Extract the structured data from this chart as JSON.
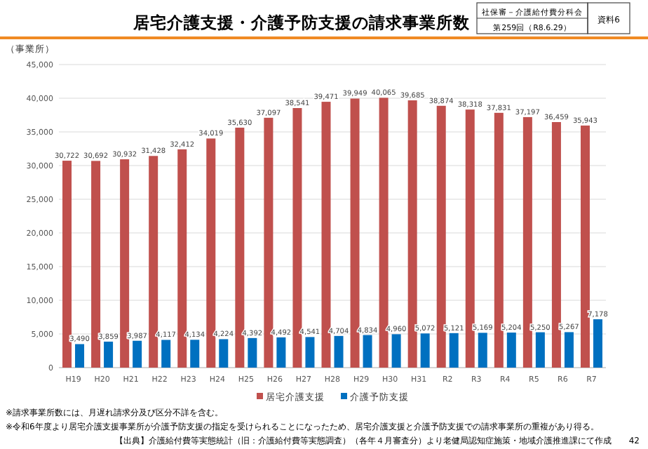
{
  "chart_data": {
    "type": "bar",
    "title": "居宅介護支援・介護予防支援の請求事業所数",
    "ylabel": "（事業所）",
    "categories": [
      "H19",
      "H20",
      "H21",
      "H22",
      "H23",
      "H24",
      "H25",
      "H26",
      "H27",
      "H28",
      "H29",
      "H30",
      "H31",
      "R2",
      "R3",
      "R4",
      "R5",
      "R6",
      "R7"
    ],
    "series": [
      {
        "name": "居宅介護支援",
        "color": "#c0504d",
        "values": [
          30722,
          30692,
          30932,
          31428,
          32412,
          34019,
          35630,
          37097,
          38541,
          39471,
          39949,
          40065,
          39685,
          38874,
          38318,
          37831,
          37197,
          36459,
          35943
        ],
        "value_labels": [
          "30,722",
          "30,692",
          "30,932",
          "31,428",
          "32,412",
          "34,019",
          "35,630",
          "37,097",
          "38,541",
          "39,471",
          "39,949",
          "40,065",
          "39,685",
          "38,874",
          "38,318",
          "37,831",
          "37,197",
          "36,459",
          "35,943"
        ]
      },
      {
        "name": "介護予防支援",
        "color": "#0070c0",
        "values": [
          3490,
          3859,
          3987,
          4117,
          4134,
          4224,
          4392,
          4492,
          4541,
          4704,
          4834,
          4960,
          5072,
          5121,
          5169,
          5204,
          5250,
          5267,
          7178
        ],
        "value_labels": [
          "3,490",
          "3,859",
          "3,987",
          "4,117",
          "4,134",
          "4,224",
          "4,392",
          "4,492",
          "4,541",
          "4,704",
          "4,834",
          "4,960",
          "5,072",
          "5,121",
          "5,169",
          "5,204",
          "5,250",
          "5,267",
          "7,178"
        ]
      }
    ],
    "ylim": [
      0,
      45000
    ],
    "yticks": [
      {
        "value": 0,
        "label": "0"
      },
      {
        "value": 5000,
        "label": "5,000"
      },
      {
        "value": 10000,
        "label": "10,000"
      },
      {
        "value": 15000,
        "label": "15,000"
      },
      {
        "value": 20000,
        "label": "20,000"
      },
      {
        "value": 25000,
        "label": "25,000"
      },
      {
        "value": 30000,
        "label": "30,000"
      },
      {
        "value": 35000,
        "label": "35,000"
      },
      {
        "value": 40000,
        "label": "40,000"
      },
      {
        "value": 45000,
        "label": "45,000"
      }
    ],
    "grid": "y",
    "legend": "bottom",
    "annotations": [
      "社保審－介護給付費分科会",
      "第259回（R8.6.29）",
      "資料6",
      "※請求事業所数には、月遅れ請求分及び区分不詳を含む。",
      "※令和6年度より居宅介護支援事業所が介護予防支援の指定を受けられることになったため、居宅介護支援と介護予防支援での請求事業所の重複があり得る。",
      "【出典】介護給付費等実態統計（旧：介護給付費等実態調査）（各年４月審査分）より老健局認知症施策・地域介護推進課にて作成",
      "42"
    ]
  }
}
